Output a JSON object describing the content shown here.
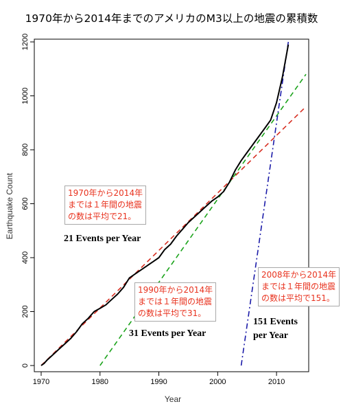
{
  "chart_data": {
    "type": "line",
    "title": "1970年から2014年までのアメリカのM3以上の地震の累積数",
    "xlabel": "Year",
    "ylabel": "Earthquake Count",
    "xlim": [
      1970,
      2015
    ],
    "ylim": [
      0,
      1200
    ],
    "x_ticks": [
      "1970",
      "1980",
      "1990",
      "2000",
      "2010"
    ],
    "y_ticks": [
      "0",
      "200",
      "400",
      "600",
      "800",
      "1000",
      "1200"
    ],
    "grid": false,
    "series": [
      {
        "role": "cumulative-count",
        "color": "#000000",
        "points": [
          [
            1970,
            0
          ],
          [
            1970.5,
            8
          ],
          [
            1971,
            20
          ],
          [
            1972,
            40
          ],
          [
            1973,
            60
          ],
          [
            1974,
            80
          ],
          [
            1975,
            100
          ],
          [
            1976,
            125
          ],
          [
            1977,
            155
          ],
          [
            1978,
            175
          ],
          [
            1979,
            200
          ],
          [
            1980,
            212
          ],
          [
            1981,
            225
          ],
          [
            1982,
            245
          ],
          [
            1983,
            265
          ],
          [
            1984,
            290
          ],
          [
            1985,
            325
          ],
          [
            1986,
            340
          ],
          [
            1987,
            355
          ],
          [
            1988,
            370
          ],
          [
            1989,
            385
          ],
          [
            1990,
            400
          ],
          [
            1991,
            430
          ],
          [
            1992,
            450
          ],
          [
            1993,
            480
          ],
          [
            1994,
            505
          ],
          [
            1995,
            530
          ],
          [
            1996,
            550
          ],
          [
            1997,
            570
          ],
          [
            1998,
            590
          ],
          [
            1999,
            610
          ],
          [
            2000,
            625
          ],
          [
            2001,
            645
          ],
          [
            2002,
            680
          ],
          [
            2003,
            725
          ],
          [
            2004,
            760
          ],
          [
            2005,
            790
          ],
          [
            2006,
            820
          ],
          [
            2007,
            850
          ],
          [
            2008,
            880
          ],
          [
            2009,
            910
          ],
          [
            2010,
            975
          ],
          [
            2011,
            1070
          ],
          [
            2011.5,
            1130
          ],
          [
            2012,
            1190
          ]
        ]
      },
      {
        "role": "trend-1970-2014",
        "color": "#d62d20",
        "dash": "dashed",
        "points": [
          [
            1970,
            0
          ],
          [
            2015,
            960
          ]
        ]
      },
      {
        "role": "trend-1990-2014",
        "color": "#1aa31a",
        "dash": "dashed",
        "points": [
          [
            1980,
            0
          ],
          [
            2015,
            1080
          ]
        ]
      },
      {
        "role": "trend-2008-2014",
        "color": "#1a1aa8",
        "dash": "dashdot",
        "points": [
          [
            2004,
            0
          ],
          [
            2012,
            1200
          ]
        ]
      }
    ],
    "annotations": [
      {
        "key": "box1",
        "text": "1970年から2014年\nまでは１年間の地震\nの数は平均で21。"
      },
      {
        "key": "label1",
        "text": "21 Events per Year"
      },
      {
        "key": "box2",
        "text": "1990年から2014年\nまでは１年間の地震\nの数は平均で31。"
      },
      {
        "key": "label2",
        "text": "31 Events per Year"
      },
      {
        "key": "box3",
        "text": "2008年から2014年\nまでは１年間の地震\nの数は平均で151。"
      },
      {
        "key": "label3",
        "text": "151 Events\nper Year"
      }
    ]
  }
}
